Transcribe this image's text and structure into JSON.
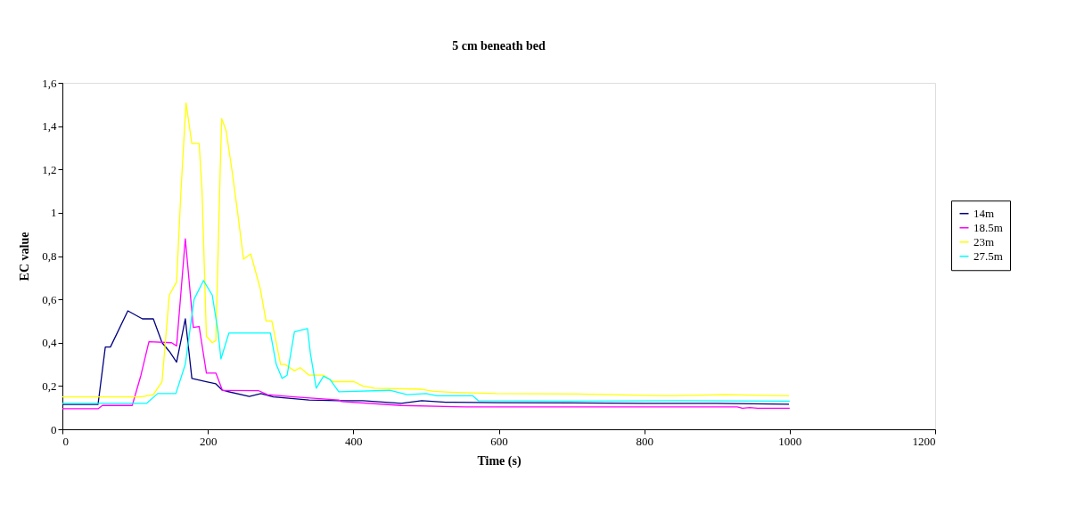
{
  "chart_data": {
    "type": "line",
    "title": "5 cm beneath bed",
    "xlabel": "Time (s)",
    "ylabel": "EC value",
    "xlim": [
      0,
      1200
    ],
    "xticks": [
      0,
      200,
      400,
      600,
      800,
      1000,
      1200
    ],
    "ylim": [
      0,
      1.6
    ],
    "yticks": [
      0,
      {
        "value": 0.2,
        "label": "0,2"
      },
      {
        "value": 0.4,
        "label": "0,4"
      },
      {
        "value": 0.6,
        "label": "0,6"
      },
      {
        "value": 0.8,
        "label": "0,8"
      },
      {
        "value": 1,
        "label": "1"
      },
      {
        "value": 1.2,
        "label": "1,2"
      },
      {
        "value": 1.4,
        "label": "1,4"
      },
      {
        "value": 1.6,
        "label": "1,6"
      }
    ],
    "grid": false,
    "legend": "right",
    "marker": "none",
    "line_style": "solid",
    "series": [
      {
        "name": "14m",
        "color": "#000080",
        "x": [
          0,
          49,
          59,
          66,
          90,
          110,
          125,
          137,
          147,
          157,
          169,
          178,
          198,
          211,
          220,
          257,
          273,
          290,
          339,
          380,
          413,
          466,
          494,
          527,
          600,
          700,
          800,
          900,
          999
        ],
        "values": [
          0.115,
          0.115,
          0.38,
          0.38,
          0.547,
          0.51,
          0.51,
          0.4,
          0.36,
          0.31,
          0.51,
          0.235,
          0.22,
          0.21,
          0.18,
          0.152,
          0.165,
          0.15,
          0.135,
          0.132,
          0.132,
          0.12,
          0.132,
          0.125,
          0.123,
          0.122,
          0.12,
          0.12,
          0.116
        ]
      },
      {
        "name": "18.5m",
        "color": "#ff00ff",
        "x": [
          0,
          49,
          55,
          96,
          108,
          119,
          150,
          157,
          169,
          180,
          188,
          198,
          211,
          220,
          270,
          282,
          319,
          380,
          384,
          466,
          555,
          928,
          935,
          945,
          956,
          1000
        ],
        "values": [
          0.095,
          0.095,
          0.11,
          0.11,
          0.25,
          0.405,
          0.4,
          0.385,
          0.88,
          0.47,
          0.475,
          0.26,
          0.26,
          0.18,
          0.178,
          0.16,
          0.15,
          0.135,
          0.128,
          0.11,
          0.103,
          0.103,
          0.097,
          0.1,
          0.097,
          0.097
        ]
      },
      {
        "name": "23m",
        "color": "#ffff00",
        "x": [
          0,
          108,
          125,
          137,
          147,
          157,
          163,
          170,
          178,
          188,
          192,
          198,
          206,
          211,
          217,
          219,
          225,
          233,
          241,
          249,
          259,
          272,
          280,
          288,
          300,
          306,
          319,
          327,
          339,
          359,
          372,
          401,
          413,
          429,
          494,
          510,
          543,
          597,
          707,
          833,
          911,
          999
        ],
        "values": [
          0.15,
          0.15,
          0.16,
          0.22,
          0.62,
          0.68,
          1.1,
          1.507,
          1.32,
          1.32,
          1.1,
          0.43,
          0.4,
          0.41,
          1.2,
          1.435,
          1.38,
          1.2,
          1.0,
          0.786,
          0.81,
          0.65,
          0.5,
          0.5,
          0.3,
          0.3,
          0.27,
          0.285,
          0.25,
          0.25,
          0.22,
          0.22,
          0.2,
          0.19,
          0.185,
          0.175,
          0.17,
          0.165,
          0.163,
          0.155,
          0.16,
          0.155
        ]
      },
      {
        "name": "27.5m",
        "color": "#00ffff",
        "x": [
          0,
          116,
          131,
          156,
          169,
          181,
          194,
          206,
          214,
          218,
          229,
          286,
          294,
          302,
          309,
          319,
          337,
          341,
          349,
          359,
          368,
          380,
          450,
          474,
          500,
          515,
          564,
          572,
          700,
          850,
          1000
        ],
        "values": [
          0.12,
          0.12,
          0.165,
          0.165,
          0.3,
          0.6,
          0.687,
          0.62,
          0.45,
          0.325,
          0.445,
          0.445,
          0.3,
          0.235,
          0.25,
          0.45,
          0.465,
          0.35,
          0.19,
          0.245,
          0.23,
          0.173,
          0.18,
          0.16,
          0.165,
          0.155,
          0.155,
          0.132,
          0.13,
          0.132,
          0.13
        ]
      }
    ]
  }
}
